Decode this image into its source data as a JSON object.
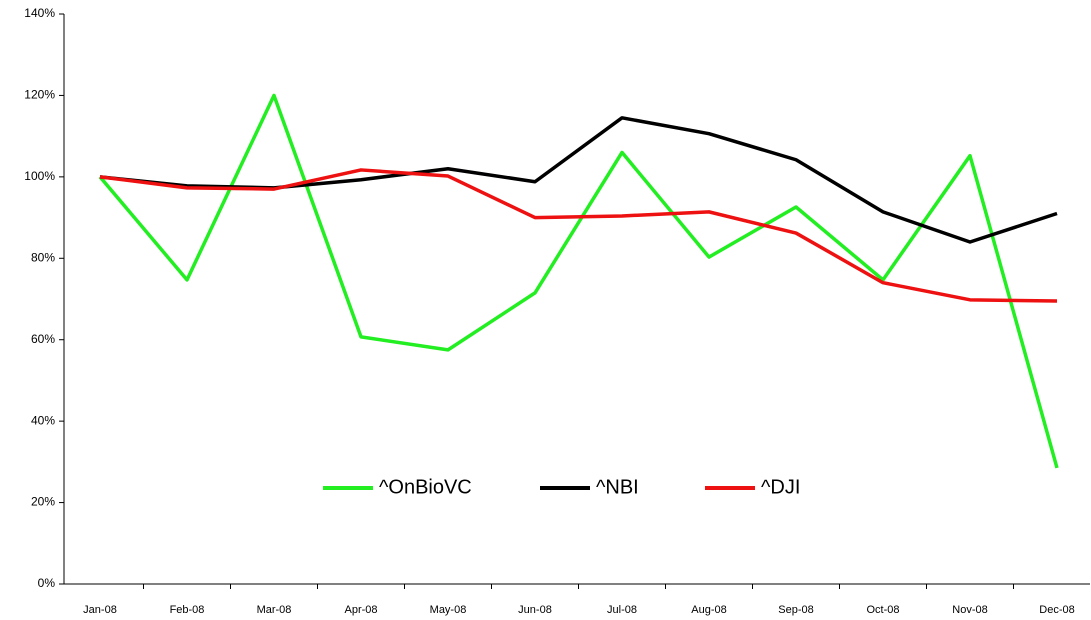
{
  "chart_data": {
    "type": "line",
    "categories": [
      "Jan-08",
      "Feb-08",
      "Mar-08",
      "Apr-08",
      "May-08",
      "Jun-08",
      "Jul-08",
      "Aug-08",
      "Sep-08",
      "Oct-08",
      "Nov-08",
      "Dec-08"
    ],
    "series": [
      {
        "name": "^OnBioVC",
        "color": "#22ee22",
        "values": [
          100,
          74.7,
          120,
          60.7,
          57.5,
          71.5,
          106,
          80.3,
          92.6,
          74.7,
          105.2,
          28.5
        ]
      },
      {
        "name": "^NBI",
        "color": "#000000",
        "values": [
          100,
          97.8,
          97.3,
          99.3,
          102,
          98.8,
          114.5,
          110.6,
          104.2,
          91.4,
          84,
          91
        ]
      },
      {
        "name": "^DJI",
        "color": "#ee1111",
        "values": [
          100,
          97.3,
          97,
          101.7,
          100.2,
          90,
          90.4,
          91.4,
          86.2,
          74,
          69.8,
          69.5
        ]
      }
    ],
    "ylim": [
      0,
      140
    ],
    "yticks": [
      {
        "value": 0,
        "label": "0%"
      },
      {
        "value": 20,
        "label": "20%"
      },
      {
        "value": 40,
        "label": "40%"
      },
      {
        "value": 60,
        "label": "60%"
      },
      {
        "value": 80,
        "label": "80%"
      },
      {
        "value": 100,
        "label": "100%"
      },
      {
        "value": 120,
        "label": "120%"
      },
      {
        "value": 140,
        "label": "140%"
      }
    ],
    "grid": false,
    "legend": "center"
  }
}
